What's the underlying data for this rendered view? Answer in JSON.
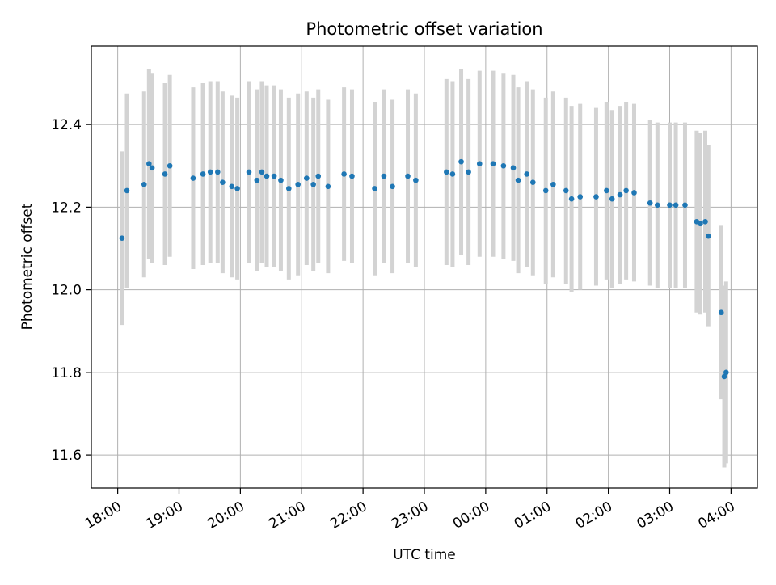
{
  "chart_data": {
    "type": "scatter",
    "title": "Photometric offset variation",
    "xlabel": "UTC time",
    "ylabel": "Photometric offset",
    "x_ticks": [
      "18:00",
      "19:00",
      "20:00",
      "21:00",
      "22:00",
      "23:00",
      "00:00",
      "01:00",
      "02:00",
      "03:00",
      "04:00"
    ],
    "x_tick_hours": [
      18,
      19,
      20,
      21,
      22,
      23,
      24,
      25,
      26,
      27,
      28
    ],
    "y_ticks": [
      "11.6",
      "11.8",
      "12.0",
      "12.2",
      "12.4"
    ],
    "xlim": [
      17.57,
      28.43
    ],
    "ylim": [
      11.52,
      12.59
    ],
    "grid": true,
    "marker_color": "#1f77b4",
    "errorbar_color": "#d3d3d3",
    "series": [
      {
        "x": [
          18.07,
          18.15,
          18.43,
          18.51,
          18.56,
          18.77,
          18.85,
          19.23,
          19.39,
          19.51,
          19.63,
          19.71,
          19.86,
          19.95,
          20.14,
          20.27,
          20.35,
          20.43,
          20.55,
          20.66,
          20.79,
          20.94,
          21.08,
          21.19,
          21.27,
          21.43,
          21.69,
          21.82,
          22.19,
          22.34,
          22.48,
          22.73,
          22.86,
          23.36,
          23.46,
          23.6,
          23.72,
          23.9,
          24.12,
          24.29,
          24.45,
          24.53,
          24.67,
          24.77,
          24.98,
          25.1,
          25.31,
          25.4,
          25.54,
          25.8,
          25.97,
          26.06,
          26.19,
          26.29,
          26.42,
          26.68,
          26.8,
          27.0,
          27.1,
          27.25,
          27.44,
          27.5,
          27.58,
          27.63,
          27.84,
          27.89,
          27.92
        ],
        "y": [
          12.125,
          12.24,
          12.255,
          12.305,
          12.295,
          12.28,
          12.3,
          12.27,
          12.28,
          12.285,
          12.285,
          12.26,
          12.25,
          12.245,
          12.285,
          12.265,
          12.285,
          12.275,
          12.275,
          12.265,
          12.245,
          12.255,
          12.27,
          12.255,
          12.275,
          12.25,
          12.28,
          12.275,
          12.245,
          12.275,
          12.25,
          12.275,
          12.265,
          12.285,
          12.28,
          12.31,
          12.285,
          12.305,
          12.305,
          12.3,
          12.295,
          12.265,
          12.28,
          12.26,
          12.24,
          12.255,
          12.24,
          12.22,
          12.225,
          12.225,
          12.24,
          12.22,
          12.23,
          12.24,
          12.235,
          12.21,
          12.205,
          12.205,
          12.205,
          12.205,
          12.165,
          12.16,
          12.165,
          12.13,
          11.945,
          11.79,
          11.8
        ],
        "yerr": [
          0.21,
          0.235,
          0.225,
          0.23,
          0.23,
          0.22,
          0.22,
          0.22,
          0.22,
          0.22,
          0.22,
          0.22,
          0.22,
          0.22,
          0.22,
          0.22,
          0.22,
          0.22,
          0.22,
          0.22,
          0.22,
          0.22,
          0.21,
          0.21,
          0.21,
          0.21,
          0.21,
          0.21,
          0.21,
          0.21,
          0.21,
          0.21,
          0.21,
          0.225,
          0.225,
          0.225,
          0.225,
          0.225,
          0.225,
          0.225,
          0.225,
          0.225,
          0.225,
          0.225,
          0.225,
          0.225,
          0.225,
          0.225,
          0.225,
          0.215,
          0.215,
          0.215,
          0.215,
          0.215,
          0.215,
          0.2,
          0.2,
          0.2,
          0.2,
          0.2,
          0.22,
          0.22,
          0.22,
          0.22,
          0.21,
          0.22,
          0.22
        ]
      }
    ]
  }
}
